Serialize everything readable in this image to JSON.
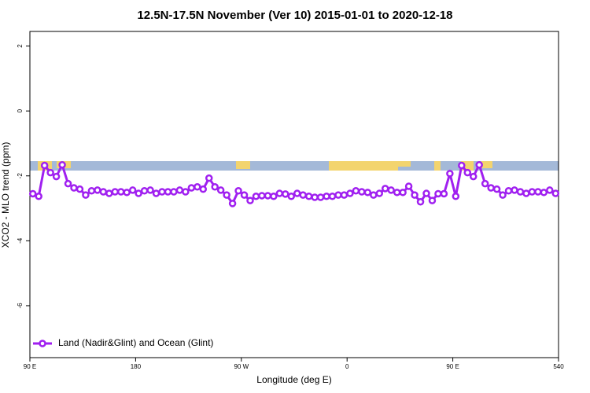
{
  "chart_data": {
    "type": "line",
    "title": "12.5N-17.5N November (Ver 10)   2015-01-01 to 2020-12-18",
    "x_label": "Longitude (deg E)",
    "y_label": "XCO2 - MLO trend (ppm)",
    "xlim": [
      90,
      540
    ],
    "ylim": [
      -7.6,
      2.45
    ],
    "xticks": [
      {
        "value": 90,
        "label": "90 E"
      },
      180,
      {
        "value": 270,
        "label": "90 W"
      },
      {
        "value": 360,
        "label": "0"
      },
      {
        "value": 450,
        "label": "90 E"
      },
      540
    ],
    "yticks": [
      -6,
      -4,
      -2,
      0,
      2
    ],
    "legend_position": "bottom-left",
    "series": [
      {
        "name": "Land (Nadir&Glint) and Ocean (Glint)",
        "color": "#a020f0",
        "x": [
          92.5,
          97.5,
          102.5,
          107.5,
          112.5,
          117.5,
          122.5,
          127.5,
          132.5,
          137.5,
          142.5,
          147.5,
          152.5,
          157.5,
          162.5,
          167.5,
          172.5,
          177.5,
          182.5,
          187.5,
          192.5,
          197.5,
          202.5,
          207.5,
          212.5,
          217.5,
          222.5,
          227.5,
          232.5,
          237.5,
          242.5,
          247.5,
          252.5,
          257.5,
          262.5,
          267.5,
          272.5,
          277.5,
          282.5,
          287.5,
          292.5,
          297.5,
          302.5,
          307.5,
          312.5,
          317.5,
          322.5,
          327.5,
          332.5,
          337.5,
          342.5,
          347.5,
          352.5,
          357.5,
          362.5,
          367.5,
          372.5,
          377.5,
          382.5,
          387.5,
          392.5,
          397.5,
          402.5,
          407.5,
          412.5,
          417.5,
          422.5,
          427.5,
          432.5,
          437.5,
          442.5,
          447.5,
          452.5,
          457.5,
          462.5,
          467.5,
          472.5,
          477.5,
          482.5,
          487.5,
          492.5,
          497.5,
          502.5,
          507.5,
          512.5,
          517.5,
          522.5,
          527.5,
          532.5,
          537.5
        ],
        "values": [
          -2.55,
          -2.63,
          -1.68,
          -1.9,
          -2.02,
          -1.66,
          -2.24,
          -2.37,
          -2.41,
          -2.59,
          -2.46,
          -2.44,
          -2.49,
          -2.54,
          -2.49,
          -2.49,
          -2.51,
          -2.44,
          -2.54,
          -2.46,
          -2.44,
          -2.54,
          -2.49,
          -2.49,
          -2.49,
          -2.44,
          -2.49,
          -2.37,
          -2.34,
          -2.41,
          -2.07,
          -2.34,
          -2.44,
          -2.59,
          -2.85,
          -2.46,
          -2.59,
          -2.76,
          -2.63,
          -2.61,
          -2.61,
          -2.63,
          -2.54,
          -2.56,
          -2.63,
          -2.54,
          -2.59,
          -2.63,
          -2.66,
          -2.66,
          -2.63,
          -2.63,
          -2.59,
          -2.59,
          -2.54,
          -2.46,
          -2.49,
          -2.51,
          -2.59,
          -2.54,
          -2.39,
          -2.44,
          -2.51,
          -2.51,
          -2.32,
          -2.59,
          -2.8,
          -2.54,
          -2.76,
          -2.55,
          -2.55,
          -1.93,
          -2.63,
          -1.68,
          -1.9,
          -2.02,
          -1.66,
          -2.24,
          -2.37,
          -2.41,
          -2.59,
          -2.46,
          -2.44,
          -2.49,
          -2.54,
          -2.49,
          -2.49,
          -2.51,
          -2.44,
          -2.54
        ]
      }
    ]
  }
}
